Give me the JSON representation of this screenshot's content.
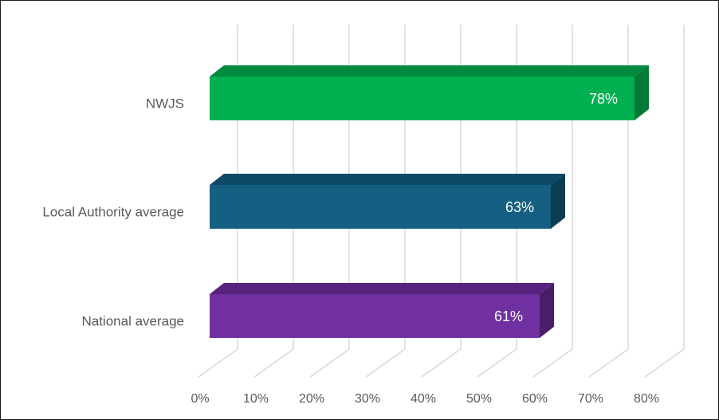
{
  "chart_data": {
    "type": "bar",
    "orientation": "horizontal",
    "style": "3d",
    "categories": [
      "NWJS",
      "Local Authority average",
      "National average"
    ],
    "values": [
      78,
      63,
      61
    ],
    "data_labels": [
      "78%",
      "63%",
      "61%"
    ],
    "xlim": [
      0,
      80
    ],
    "x_ticks": [
      0,
      10,
      20,
      30,
      40,
      50,
      60,
      70,
      80
    ],
    "x_tick_labels": [
      "0%",
      "10%",
      "20%",
      "30%",
      "40%",
      "50%",
      "60%",
      "70%",
      "80%"
    ],
    "grid": true,
    "legend": "none",
    "colors": {
      "front": [
        "#00b050",
        "#156082",
        "#7030a0"
      ],
      "top": [
        "#008a3e",
        "#0e4a66",
        "#57237e"
      ],
      "side": [
        "#007a35",
        "#0b3d55",
        "#4a1d6b"
      ],
      "grid": "#d9d9d9",
      "axis_text": "#595959",
      "data_label_text": "#ffffff"
    }
  }
}
